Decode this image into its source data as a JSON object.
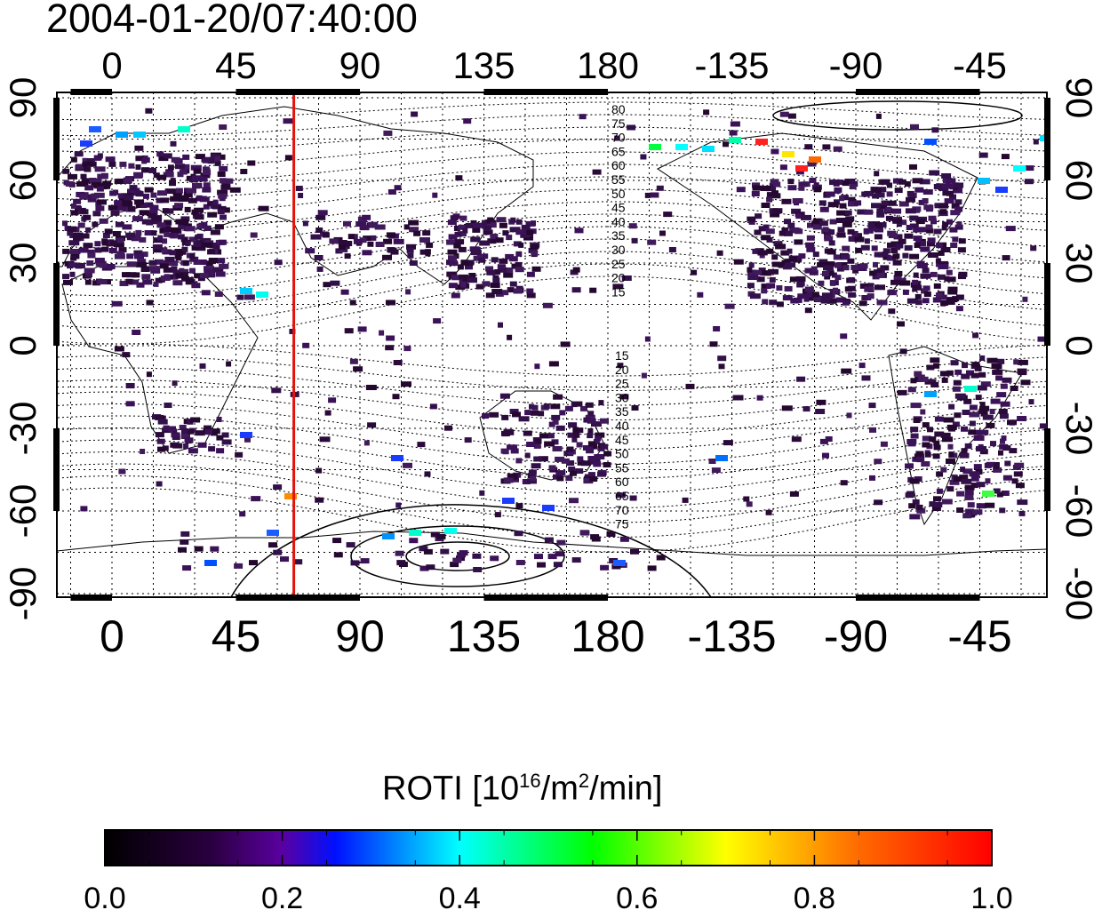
{
  "timestamp": "2004-01-20/07:40:00",
  "map": {
    "top_tick_labels": [
      "0",
      "45",
      "90",
      "135",
      "180",
      "-135",
      "-90",
      "-45"
    ],
    "bottom_tick_labels": [
      "0",
      "45",
      "90",
      "135",
      "180",
      "-135",
      "-90",
      "-45"
    ],
    "left_tick_labels": [
      "90",
      "60",
      "30",
      "0",
      "-30",
      "-60",
      "-90"
    ],
    "right_tick_labels": [
      "90",
      "60",
      "30",
      "0",
      "-30",
      "-60",
      "-90"
    ],
    "marker_line_longitude": 66,
    "marker_line_color": "#e0140c",
    "north_contour_labels": [
      "80",
      "75",
      "70",
      "65",
      "60",
      "55",
      "50",
      "45",
      "40",
      "35",
      "30",
      "25",
      "20",
      "15"
    ],
    "south_contour_labels": [
      "15",
      "20",
      "25",
      "30",
      "35",
      "40",
      "45",
      "50",
      "55",
      "60",
      "65",
      "70",
      "75"
    ]
  },
  "colorbar": {
    "title_text": "ROTI  [10",
    "title_sup1": "16",
    "title_mid": "/m",
    "title_sup2": "2",
    "title_end": "/min]",
    "tick_labels": [
      "0.0",
      "0.2",
      "0.4",
      "0.6",
      "0.8",
      "1.0"
    ],
    "stops": [
      "#000000",
      "#3a0060",
      "#5a00b0",
      "#0000ff",
      "#00ffff",
      "#00ff00",
      "#ffff00",
      "#ff0000"
    ]
  }
}
